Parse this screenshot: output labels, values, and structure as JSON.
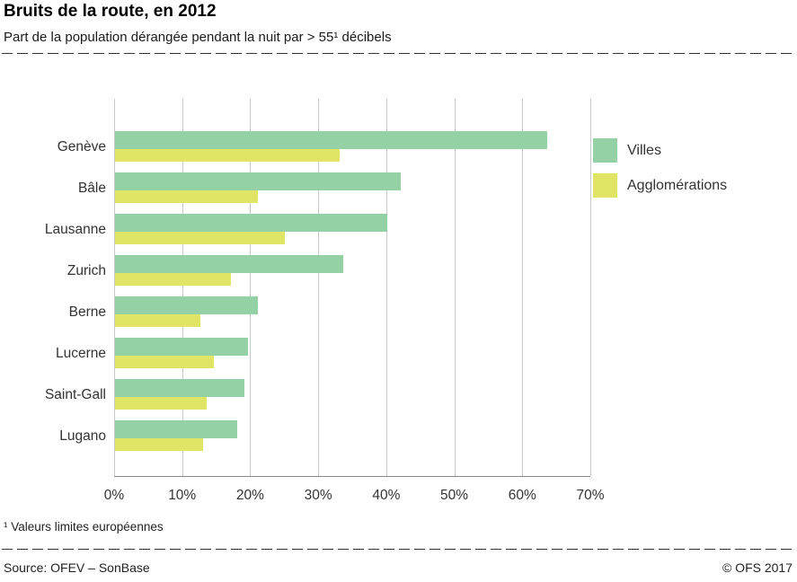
{
  "header": {
    "title": "Bruits de la route, en 2012",
    "subtitle": "Part de la population dérangée pendant la nuit par > 55¹ décibels"
  },
  "chart_data": {
    "type": "bar",
    "orientation": "horizontal",
    "title": "Bruits de la route, en 2012",
    "subtitle": "Part de la population dérangée pendant la nuit par > 55¹ décibels",
    "categories": [
      "Genève",
      "Bâle",
      "Lausanne",
      "Zurich",
      "Berne",
      "Lucerne",
      "Saint-Gall",
      "Lugano"
    ],
    "series": [
      {
        "name": "Villes",
        "color": "#94d1a4",
        "values": [
          63.5,
          42,
          40,
          33.5,
          21,
          19.5,
          19,
          18
        ]
      },
      {
        "name": "Agglomérations",
        "color": "#e0e566",
        "values": [
          33,
          21,
          25,
          17,
          12.5,
          14.5,
          13.5,
          13
        ]
      }
    ],
    "xlim": [
      0,
      70
    ],
    "x_ticks": [
      "0%",
      "10%",
      "20%",
      "30%",
      "40%",
      "50%",
      "60%",
      "70%"
    ],
    "xlabel": "",
    "ylabel": "",
    "grid": true,
    "legend_position": "right"
  },
  "footnote": "¹  Valeurs limites européennes",
  "footer": {
    "source": "Source: OFEV – SonBase",
    "copyright": "© OFS  2017"
  }
}
